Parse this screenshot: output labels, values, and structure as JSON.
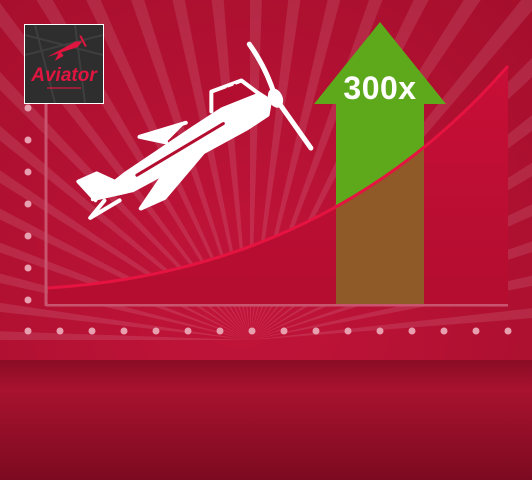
{
  "game": {
    "logo_text": "Aviator",
    "multiplier": "300x"
  },
  "colors": {
    "background_top": "#b0102f",
    "background_bottom": "#8d0b26",
    "curve": "#e5133f",
    "curve_fill": "#c40d33",
    "arrow": "#5ea81c",
    "arrow_overlap": "#8f5a28",
    "plane": "#ffffff"
  },
  "icons": {
    "plane": "airplane-icon",
    "arrow": "up-arrow-icon"
  }
}
